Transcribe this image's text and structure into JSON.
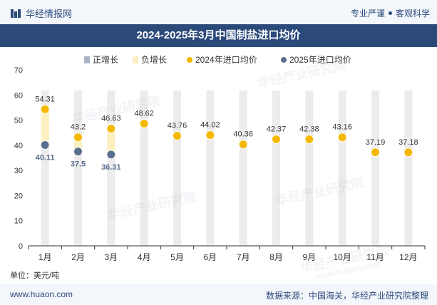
{
  "brand": {
    "name": "华经情报网"
  },
  "header": {
    "slogan_left": "专业严谨",
    "slogan_right": "客观科学"
  },
  "title": "2024-2025年3月中国制盐进口均价",
  "unit": "单位：美元/吨",
  "footer": {
    "site": "www.huaon.com",
    "source": "数据来源：中国海关，华经产业研究院整理"
  },
  "watermarks": [
    "华经产业研究院",
    "华经产业研究院",
    "华经产业研究院",
    "华经产业研究院",
    "华经产业研究院"
  ],
  "watermark_url": "www.huaon.com",
  "colors": {
    "brand": "#2b4a7a",
    "series2024": "#f5b800",
    "series2025": "#5b6f8f",
    "increase": "#aab4c4",
    "decrease": "#fdf0c0",
    "column": "#ececec"
  },
  "chart_data": {
    "type": "line",
    "categories": [
      "1月",
      "2月",
      "3月",
      "4月",
      "5月",
      "6月",
      "7月",
      "8月",
      "9月",
      "10月",
      "11月",
      "12月"
    ],
    "ylim": [
      0,
      70
    ],
    "yticks": [
      0,
      10,
      20,
      30,
      40,
      50,
      60,
      70
    ],
    "legend": [
      "正增长",
      "负增长",
      "2024年进口均价",
      "2025年进口均价"
    ],
    "legend_position": "top-center",
    "series": [
      {
        "name": "2024年进口均价",
        "values": [
          54.31,
          43.2,
          46.63,
          48.62,
          43.76,
          44.02,
          40.36,
          42.37,
          42.38,
          43.16,
          37.19,
          37.18
        ]
      },
      {
        "name": "2025年进口均价",
        "values": [
          40.11,
          37.5,
          36.31,
          null,
          null,
          null,
          null,
          null,
          null,
          null,
          null,
          null
        ]
      }
    ],
    "labels_2024": [
      "54.31",
      "43.2",
      "46.63",
      "48.62",
      "43.76",
      "44.02",
      "40.36",
      "42.37",
      "42.38",
      "43.16",
      "37.19",
      "37.18"
    ],
    "labels_2025": [
      "40.11",
      "37.5",
      "36.31"
    ]
  }
}
